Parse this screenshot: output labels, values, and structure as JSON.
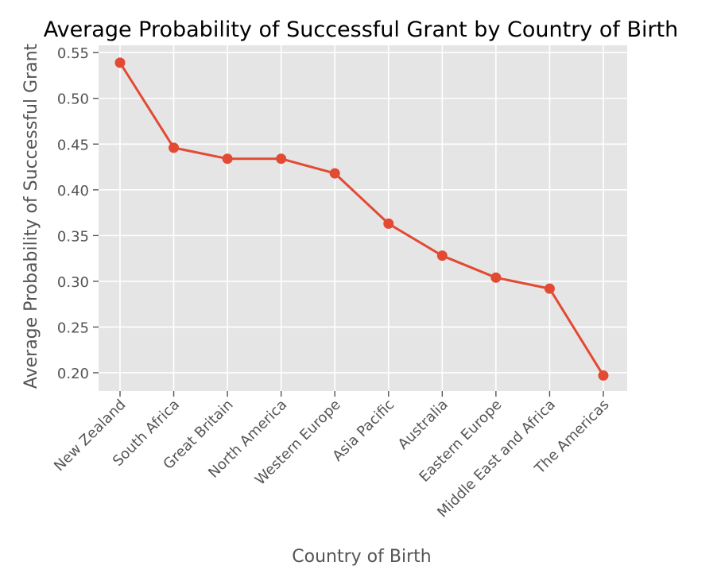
{
  "chart_data": {
    "type": "line",
    "title": "Average Probability of Successful Grant by Country of Birth",
    "xlabel": "Country of Birth",
    "ylabel": "Average Probability of Successful Grant",
    "categories": [
      "New Zealand",
      "South Africa",
      "Great Britain",
      "North America",
      "Western Europe",
      "Asia Pacific",
      "Australia",
      "Eastern Europe",
      "Middle East and Africa",
      "The Americas"
    ],
    "values": [
      0.539,
      0.446,
      0.434,
      0.434,
      0.418,
      0.363,
      0.328,
      0.304,
      0.292,
      0.197
    ],
    "ylim": [
      0.18,
      0.558
    ],
    "yticks": [
      0.2,
      0.25,
      0.3,
      0.35,
      0.4,
      0.45,
      0.5,
      0.55
    ],
    "ytick_labels": [
      "0.20",
      "0.25",
      "0.30",
      "0.35",
      "0.40",
      "0.45",
      "0.50",
      "0.55"
    ],
    "grid": true,
    "colors": {
      "line": "#E24A33",
      "background": "#E5E5E5",
      "grid": "#FFFFFF",
      "text": "#555555",
      "title": "#000000"
    }
  }
}
